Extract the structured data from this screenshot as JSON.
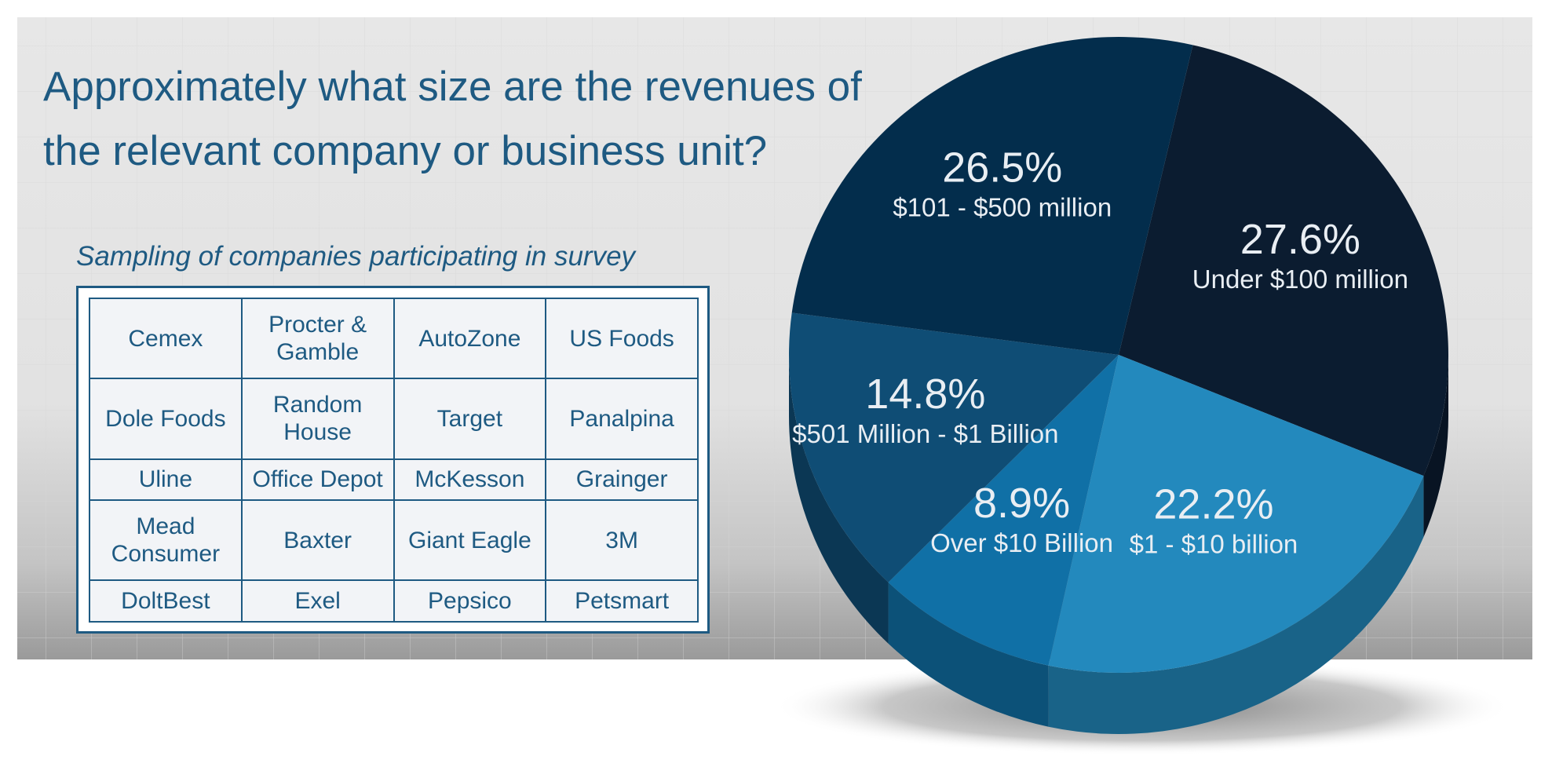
{
  "header": {
    "title": "Approximately what size are the revenues of the relevant company or business unit?"
  },
  "table": {
    "caption": "Sampling of companies participating in survey",
    "rows": [
      [
        "Cemex",
        "Procter & Gamble",
        "AutoZone",
        "US Foods"
      ],
      [
        "Dole Foods",
        "Random House",
        "Target",
        "Panalpina"
      ],
      [
        "Uline",
        "Office Depot",
        "McKesson",
        "Grainger"
      ],
      [
        "Mead Consumer",
        "Baxter",
        "Giant Eagle",
        "3M"
      ],
      [
        "DoltBest",
        "Exel",
        "Pepsico",
        "Petsmart"
      ]
    ]
  },
  "chart_data": {
    "type": "pie",
    "title": "",
    "slices": [
      {
        "label": "Under $100 million",
        "value": 27.6,
        "value_label": "27.6%",
        "color": "#0b1c30"
      },
      {
        "label": "$1 - $10 billion",
        "value": 22.2,
        "value_label": "22.2%",
        "color": "#2389bd"
      },
      {
        "label": "Over $10 Billion",
        "value": 8.9,
        "value_label": "8.9%",
        "color": "#1070a6"
      },
      {
        "label": "$501 Million - $1 Billion",
        "value": 14.8,
        "value_label": "14.8%",
        "color": "#0f4d75"
      },
      {
        "label": "$101 - $500 million",
        "value": 26.5,
        "value_label": "26.5%",
        "color": "#032d4c"
      }
    ]
  }
}
